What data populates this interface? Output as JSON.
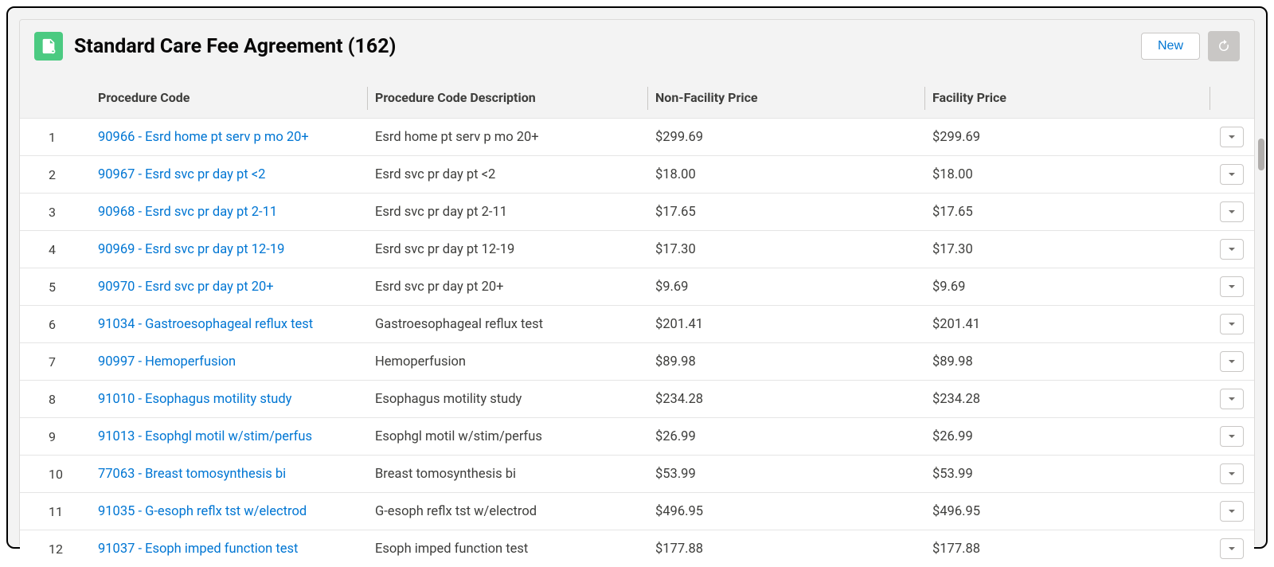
{
  "header": {
    "title": "Standard Care Fee Agreement (162)",
    "new_label": "New",
    "icon_name": "contract-doc-icon",
    "icon_bg": "#4bca81"
  },
  "columns": [
    {
      "key": "num",
      "label": ""
    },
    {
      "key": "code",
      "label": "Procedure Code"
    },
    {
      "key": "desc",
      "label": "Procedure Code Description"
    },
    {
      "key": "nfp",
      "label": "Non-Facility Price"
    },
    {
      "key": "fp",
      "label": "Facility Price"
    },
    {
      "key": "act",
      "label": ""
    }
  ],
  "rows": [
    {
      "num": "1",
      "code": "90966 - Esrd home pt serv p mo 20+",
      "desc": "Esrd home pt serv p mo 20+",
      "nfp": "$299.69",
      "fp": "$299.69"
    },
    {
      "num": "2",
      "code": "90967 - Esrd svc pr day pt <2",
      "desc": "Esrd svc pr day pt <2",
      "nfp": "$18.00",
      "fp": "$18.00"
    },
    {
      "num": "3",
      "code": "90968 - Esrd svc pr day pt 2-11",
      "desc": "Esrd svc pr day pt 2-11",
      "nfp": "$17.65",
      "fp": "$17.65"
    },
    {
      "num": "4",
      "code": "90969 - Esrd svc pr day pt 12-19",
      "desc": "Esrd svc pr day pt 12-19",
      "nfp": "$17.30",
      "fp": "$17.30"
    },
    {
      "num": "5",
      "code": "90970 - Esrd svc pr day pt 20+",
      "desc": "Esrd svc pr day pt 20+",
      "nfp": "$9.69",
      "fp": "$9.69"
    },
    {
      "num": "6",
      "code": "91034 - Gastroesophageal reflux test",
      "desc": "Gastroesophageal reflux test",
      "nfp": "$201.41",
      "fp": "$201.41"
    },
    {
      "num": "7",
      "code": "90997 - Hemoperfusion",
      "desc": "Hemoperfusion",
      "nfp": "$89.98",
      "fp": "$89.98"
    },
    {
      "num": "8",
      "code": "91010 - Esophagus motility study",
      "desc": "Esophagus motility study",
      "nfp": "$234.28",
      "fp": "$234.28"
    },
    {
      "num": "9",
      "code": "91013 - Esophgl motil w/stim/perfus",
      "desc": "Esophgl motil w/stim/perfus",
      "nfp": "$26.99",
      "fp": "$26.99"
    },
    {
      "num": "10",
      "code": "77063 - Breast tomosynthesis bi",
      "desc": "Breast tomosynthesis bi",
      "nfp": "$53.99",
      "fp": "$53.99"
    },
    {
      "num": "11",
      "code": "91035 - G-esoph reflx tst w/electrod",
      "desc": "G-esoph reflx tst w/electrod",
      "nfp": "$496.95",
      "fp": "$496.95"
    },
    {
      "num": "12",
      "code": "91037 - Esoph imped function test",
      "desc": "Esoph imped function test",
      "nfp": "$177.88",
      "fp": "$177.88"
    }
  ],
  "colors": {
    "link": "#0176d3",
    "border": "#dddbda",
    "row_border": "#e5e5e5",
    "bg": "#f3f3f3",
    "text": "#3e3e3c"
  }
}
